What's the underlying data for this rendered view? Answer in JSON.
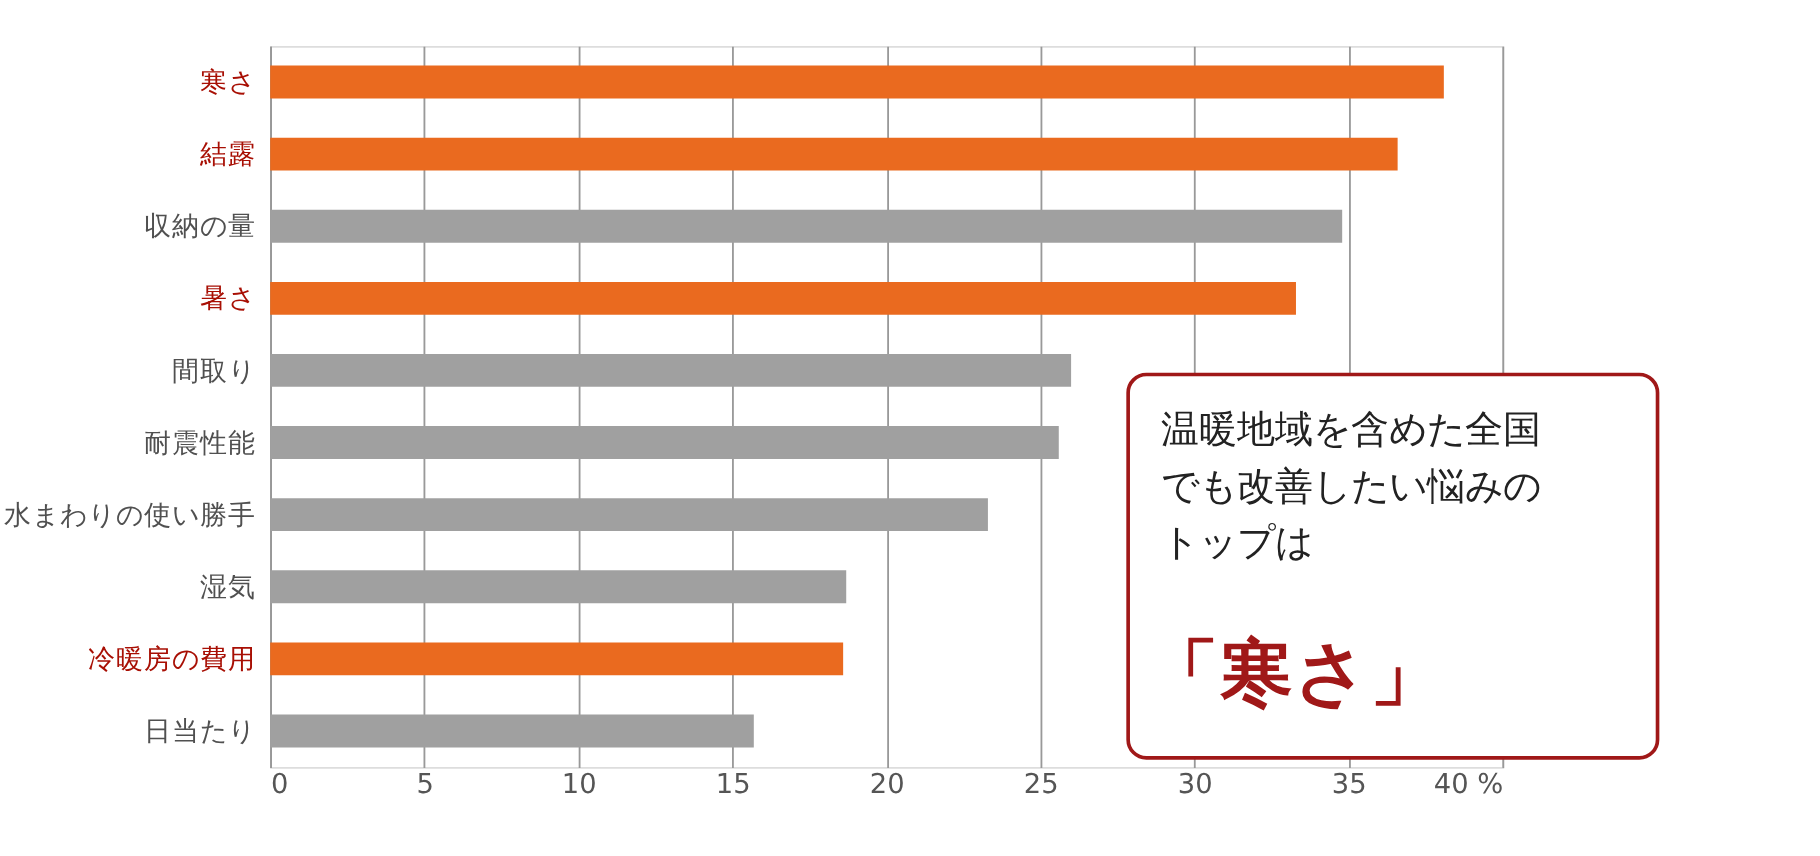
{
  "chart_data": {
    "type": "bar",
    "orientation": "horizontal",
    "categories": [
      "寒さ",
      "結露",
      "収納の量",
      "暑さ",
      "間取り",
      "耐震性能",
      "水まわりの使い勝手",
      "湿気",
      "冷暖房の費用",
      "日当たり"
    ],
    "values": [
      38.1,
      36.6,
      34.8,
      33.3,
      26.0,
      25.6,
      23.3,
      18.7,
      18.6,
      15.7
    ],
    "colors": [
      "#ea6a1f",
      "#ea6a1f",
      "#a0a0a0",
      "#ea6a1f",
      "#a0a0a0",
      "#a0a0a0",
      "#a0a0a0",
      "#a0a0a0",
      "#ea6a1f",
      "#a0a0a0"
    ],
    "xlim": [
      0,
      40
    ],
    "xticks": [
      0,
      5,
      10,
      15,
      20,
      25,
      30,
      35,
      {
        "value": 40,
        "label": "40 %"
      }
    ],
    "grid": "x",
    "annotations": [
      "温暖地域を含めた全国でも改善したい悩みのトップは",
      "「寒さ」"
    ]
  }
}
